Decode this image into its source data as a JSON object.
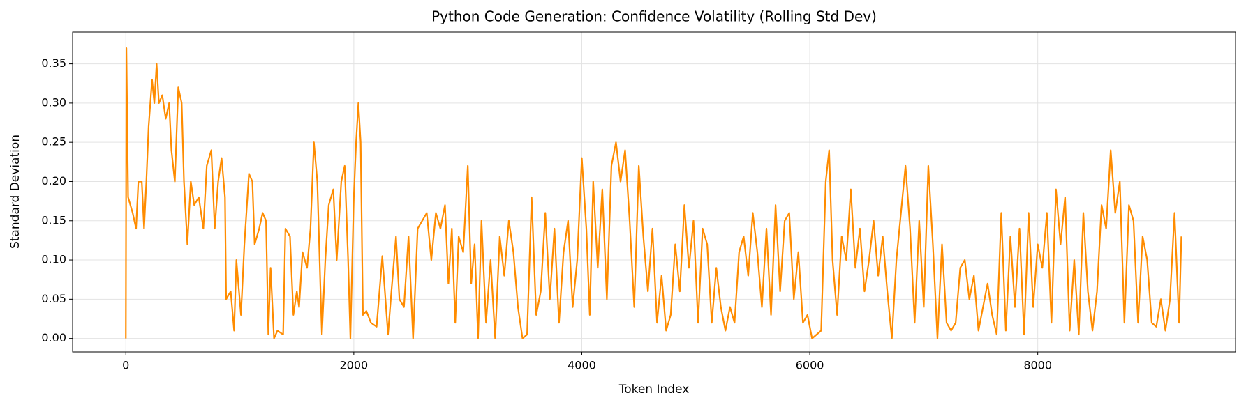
{
  "chart_data": {
    "type": "line",
    "title": "Python Code Generation: Confidence Volatility (Rolling Std Dev)",
    "x_label": "Token Index",
    "y_label": "Standard Deviation",
    "color": "#ff8c00",
    "grid": true,
    "xlim": [
      -467,
      9735
    ],
    "ylim": [
      -0.0172,
      0.3905
    ],
    "xticks": [
      0,
      2000,
      4000,
      6000,
      8000
    ],
    "yticks": [
      {
        "value": 0,
        "label": "0.00"
      },
      {
        "value": 0.05,
        "label": "0.05"
      },
      {
        "value": 0.1,
        "label": "0.10"
      },
      {
        "value": 0.15,
        "label": "0.15"
      },
      {
        "value": 0.2,
        "label": "0.20"
      },
      {
        "value": 0.25,
        "label": "0.25"
      },
      {
        "value": 0.3,
        "label": "0.30"
      },
      {
        "value": 0.35,
        "label": "0.35"
      }
    ],
    "x": [
      0,
      5,
      20,
      60,
      90,
      110,
      140,
      160,
      180,
      200,
      230,
      250,
      270,
      290,
      320,
      350,
      380,
      400,
      430,
      460,
      490,
      510,
      540,
      570,
      600,
      640,
      680,
      710,
      750,
      780,
      810,
      840,
      870,
      880,
      920,
      950,
      970,
      1010,
      1040,
      1080,
      1110,
      1130,
      1170,
      1200,
      1230,
      1250,
      1270,
      1300,
      1330,
      1380,
      1400,
      1440,
      1470,
      1500,
      1520,
      1550,
      1590,
      1620,
      1650,
      1680,
      1710,
      1720,
      1750,
      1780,
      1820,
      1850,
      1890,
      1920,
      1950,
      1970,
      2000,
      2020,
      2040,
      2060,
      2080,
      2110,
      2150,
      2200,
      2250,
      2300,
      2330,
      2370,
      2400,
      2440,
      2480,
      2520,
      2560,
      2600,
      2640,
      2680,
      2720,
      2760,
      2800,
      2830,
      2860,
      2890,
      2920,
      2960,
      3000,
      3030,
      3060,
      3090,
      3120,
      3160,
      3200,
      3240,
      3280,
      3320,
      3360,
      3400,
      3440,
      3480,
      3520,
      3560,
      3600,
      3640,
      3680,
      3720,
      3760,
      3800,
      3840,
      3880,
      3920,
      3960,
      4000,
      4040,
      4070,
      4100,
      4140,
      4180,
      4220,
      4260,
      4300,
      4340,
      4380,
      4420,
      4460,
      4500,
      4540,
      4580,
      4620,
      4660,
      4700,
      4740,
      4780,
      4820,
      4860,
      4900,
      4940,
      4980,
      5020,
      5060,
      5100,
      5140,
      5180,
      5220,
      5260,
      5300,
      5340,
      5380,
      5420,
      5460,
      5500,
      5540,
      5580,
      5620,
      5660,
      5700,
      5740,
      5780,
      5820,
      5860,
      5900,
      5940,
      5980,
      6020,
      6060,
      6100,
      6140,
      6170,
      6200,
      6240,
      6280,
      6320,
      6360,
      6400,
      6440,
      6480,
      6520,
      6560,
      6600,
      6640,
      6680,
      6720,
      6760,
      6800,
      6840,
      6880,
      6920,
      6960,
      7000,
      7040,
      7080,
      7120,
      7160,
      7200,
      7240,
      7280,
      7320,
      7360,
      7400,
      7440,
      7480,
      7520,
      7560,
      7600,
      7640,
      7680,
      7720,
      7760,
      7800,
      7840,
      7880,
      7920,
      7960,
      8000,
      8040,
      8080,
      8120,
      8160,
      8200,
      8240,
      8280,
      8320,
      8360,
      8400,
      8440,
      8480,
      8520,
      8560,
      8600,
      8640,
      8680,
      8720,
      8760,
      8800,
      8840,
      8880,
      8920,
      8960,
      9000,
      9040,
      9080,
      9120,
      9160,
      9200,
      9240,
      9260
    ],
    "values": [
      0,
      0.37,
      0.18,
      0.16,
      0.14,
      0.2,
      0.2,
      0.14,
      0.2,
      0.27,
      0.33,
      0.3,
      0.35,
      0.3,
      0.31,
      0.28,
      0.3,
      0.24,
      0.2,
      0.32,
      0.3,
      0.2,
      0.12,
      0.2,
      0.17,
      0.18,
      0.14,
      0.22,
      0.24,
      0.14,
      0.2,
      0.23,
      0.18,
      0.05,
      0.06,
      0.01,
      0.1,
      0.03,
      0.12,
      0.21,
      0.2,
      0.12,
      0.14,
      0.16,
      0.15,
      0.005,
      0.09,
      0,
      0.01,
      0.005,
      0.14,
      0.13,
      0.03,
      0.06,
      0.04,
      0.11,
      0.09,
      0.14,
      0.25,
      0.2,
      0.05,
      0.005,
      0.1,
      0.17,
      0.19,
      0.1,
      0.2,
      0.22,
      0.1,
      0,
      0.18,
      0.25,
      0.3,
      0.25,
      0.03,
      0.035,
      0.02,
      0.015,
      0.105,
      0.005,
      0.06,
      0.13,
      0.05,
      0.04,
      0.13,
      0,
      0.14,
      0.15,
      0.16,
      0.1,
      0.16,
      0.14,
      0.17,
      0.07,
      0.14,
      0.02,
      0.13,
      0.11,
      0.22,
      0.07,
      0.12,
      0,
      0.15,
      0.02,
      0.1,
      0,
      0.13,
      0.08,
      0.15,
      0.11,
      0.04,
      0,
      0.005,
      0.18,
      0.03,
      0.06,
      0.16,
      0.05,
      0.14,
      0.02,
      0.11,
      0.15,
      0.04,
      0.1,
      0.23,
      0.14,
      0.03,
      0.2,
      0.09,
      0.19,
      0.05,
      0.22,
      0.25,
      0.2,
      0.24,
      0.15,
      0.04,
      0.22,
      0.13,
      0.06,
      0.14,
      0.02,
      0.08,
      0.01,
      0.03,
      0.12,
      0.06,
      0.17,
      0.09,
      0.15,
      0.02,
      0.14,
      0.12,
      0.02,
      0.09,
      0.04,
      0.01,
      0.04,
      0.02,
      0.11,
      0.13,
      0.08,
      0.16,
      0.11,
      0.04,
      0.14,
      0.03,
      0.17,
      0.06,
      0.15,
      0.16,
      0.05,
      0.11,
      0.02,
      0.03,
      0,
      0.005,
      0.01,
      0.2,
      0.24,
      0.1,
      0.03,
      0.13,
      0.1,
      0.19,
      0.09,
      0.14,
      0.06,
      0.1,
      0.15,
      0.08,
      0.13,
      0.06,
      0,
      0.1,
      0.16,
      0.22,
      0.14,
      0.02,
      0.15,
      0.04,
      0.22,
      0.12,
      0,
      0.12,
      0.02,
      0.01,
      0.02,
      0.09,
      0.1,
      0.05,
      0.08,
      0.01,
      0.04,
      0.07,
      0.03,
      0.005,
      0.16,
      0.01,
      0.13,
      0.04,
      0.14,
      0.005,
      0.16,
      0.04,
      0.12,
      0.09,
      0.16,
      0.02,
      0.19,
      0.12,
      0.18,
      0.01,
      0.1,
      0.005,
      0.16,
      0.06,
      0.01,
      0.06,
      0.17,
      0.14,
      0.24,
      0.16,
      0.2,
      0.02,
      0.17,
      0.15,
      0.02,
      0.13,
      0.1,
      0.02,
      0.015,
      0.05,
      0.01,
      0.05,
      0.16,
      0.02,
      0.13
    ]
  }
}
